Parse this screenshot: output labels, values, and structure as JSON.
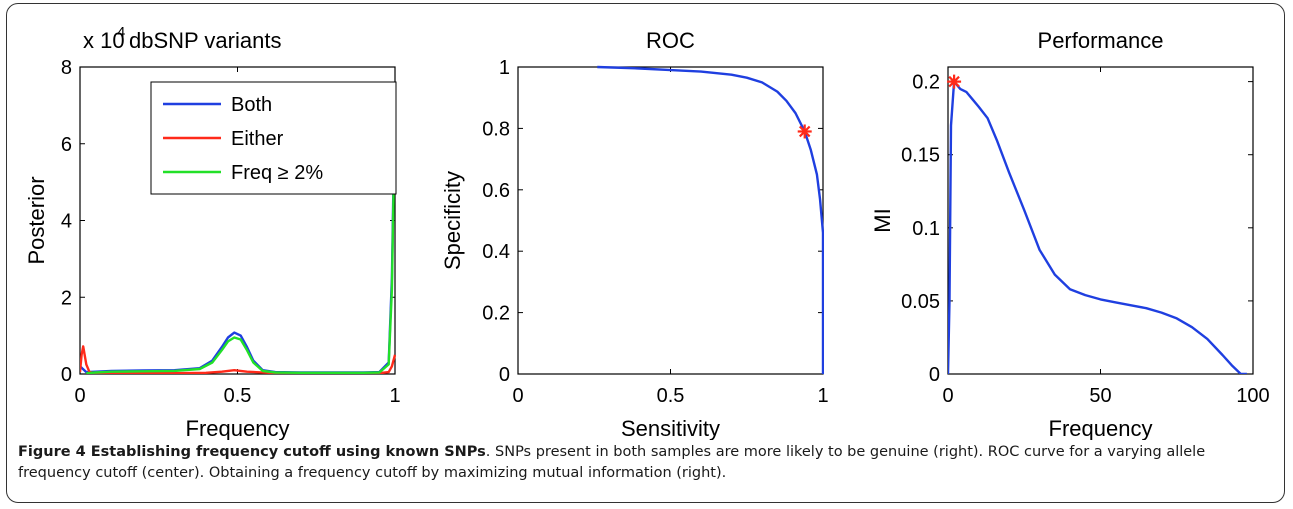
{
  "caption": {
    "bold": "Figure 4 Establishing frequency cutoff using known SNPs",
    "text": ". SNPs present in both samples are more likely to be genuine (right). ROC curve for a varying allele frequency cutoff (center). Obtaining a frequency cutoff by maximizing mutual information (right)."
  },
  "chart_data": [
    {
      "type": "line",
      "title": "dbSNP variants",
      "scale_label": "x 10",
      "scale_exponent": "4",
      "xlabel": "Frequency",
      "ylabel": "Posterior",
      "xlim": [
        0,
        1
      ],
      "ylim": [
        0,
        8
      ],
      "xticks": [
        0,
        0.5,
        1
      ],
      "xtick_labels": [
        "0",
        "0.5",
        "1"
      ],
      "yticks": [
        0,
        2,
        4,
        6,
        8
      ],
      "ytick_labels": [
        "0",
        "2",
        "4",
        "6",
        "8"
      ],
      "grid": false,
      "legend": "top-right",
      "series": [
        {
          "name": "Both",
          "color": "#1f3fe0",
          "x": [
            0,
            0.02,
            0.05,
            0.1,
            0.2,
            0.3,
            0.38,
            0.42,
            0.45,
            0.47,
            0.49,
            0.51,
            0.53,
            0.55,
            0.58,
            0.62,
            0.7,
            0.8,
            0.9,
            0.95,
            0.98,
            0.99,
            1.0
          ],
          "y": [
            0.2,
            0.05,
            0.06,
            0.08,
            0.09,
            0.1,
            0.15,
            0.35,
            0.7,
            0.95,
            1.08,
            1.0,
            0.7,
            0.35,
            0.1,
            0.05,
            0.04,
            0.04,
            0.04,
            0.05,
            0.3,
            2.5,
            7.4
          ]
        },
        {
          "name": "Either",
          "color": "#ff2a1a",
          "x": [
            0,
            0.005,
            0.01,
            0.02,
            0.03,
            0.05,
            0.1,
            0.2,
            0.3,
            0.4,
            0.45,
            0.49,
            0.53,
            0.6,
            0.7,
            0.8,
            0.9,
            0.95,
            0.98,
            0.99,
            1.0
          ],
          "y": [
            0.05,
            0.5,
            0.72,
            0.25,
            0.05,
            0.02,
            0.02,
            0.02,
            0.02,
            0.03,
            0.06,
            0.1,
            0.06,
            0.03,
            0.02,
            0.02,
            0.02,
            0.02,
            0.05,
            0.2,
            0.5
          ]
        },
        {
          "name": "Freq ≥ 2%",
          "color": "#22e028",
          "x": [
            0.02,
            0.05,
            0.1,
            0.2,
            0.3,
            0.38,
            0.42,
            0.45,
            0.47,
            0.49,
            0.51,
            0.53,
            0.55,
            0.58,
            0.62,
            0.7,
            0.8,
            0.9,
            0.95,
            0.98,
            0.99,
            1.0
          ],
          "y": [
            0.02,
            0.04,
            0.06,
            0.07,
            0.08,
            0.13,
            0.3,
            0.62,
            0.85,
            0.95,
            0.9,
            0.62,
            0.3,
            0.08,
            0.04,
            0.03,
            0.03,
            0.03,
            0.04,
            0.25,
            2.2,
            7.0
          ]
        }
      ]
    },
    {
      "type": "line",
      "title": "ROC",
      "xlabel": "Sensitivity",
      "ylabel": "Specificity",
      "xlim": [
        0,
        1
      ],
      "ylim": [
        0,
        1
      ],
      "xticks": [
        0,
        0.5,
        1
      ],
      "xtick_labels": [
        "0",
        "0.5",
        "1"
      ],
      "yticks": [
        0,
        0.2,
        0.4,
        0.6,
        0.8,
        1
      ],
      "ytick_labels": [
        "0",
        "0.2",
        "0.4",
        "0.6",
        "0.8",
        "1"
      ],
      "grid": false,
      "series": [
        {
          "color": "#1f3fe0",
          "x": [
            0.26,
            0.4,
            0.5,
            0.6,
            0.7,
            0.75,
            0.8,
            0.85,
            0.88,
            0.91,
            0.94,
            0.96,
            0.98,
            0.99,
            1.0,
            1.0
          ],
          "y": [
            1.0,
            0.995,
            0.99,
            0.985,
            0.975,
            0.965,
            0.95,
            0.92,
            0.89,
            0.85,
            0.79,
            0.73,
            0.65,
            0.57,
            0.46,
            0.0
          ]
        }
      ],
      "marker": {
        "x": 0.94,
        "y": 0.79,
        "color": "#ff2a1a",
        "symbol": "star"
      }
    },
    {
      "type": "line",
      "title": "Performance",
      "xlabel": "Frequency",
      "ylabel": "MI",
      "xlim": [
        0,
        100
      ],
      "ylim": [
        0,
        0.21
      ],
      "xticks": [
        0,
        50,
        100
      ],
      "xtick_labels": [
        "0",
        "50",
        "100"
      ],
      "yticks": [
        0,
        0.05,
        0.1,
        0.15,
        0.2
      ],
      "ytick_labels": [
        "0",
        "0.05",
        "0.1",
        "0.15",
        "0.2"
      ],
      "grid": false,
      "series": [
        {
          "color": "#1f3fe0",
          "x": [
            0,
            0.5,
            1,
            2,
            4,
            6,
            8,
            10,
            13,
            16,
            20,
            25,
            30,
            35,
            40,
            45,
            50,
            55,
            60,
            65,
            70,
            75,
            80,
            85,
            90,
            93,
            96,
            98
          ],
          "y": [
            0,
            0.05,
            0.17,
            0.2,
            0.195,
            0.193,
            0.188,
            0.183,
            0.175,
            0.16,
            0.138,
            0.112,
            0.085,
            0.068,
            0.058,
            0.054,
            0.051,
            0.049,
            0.047,
            0.045,
            0.042,
            0.038,
            0.032,
            0.024,
            0.013,
            0.006,
            0.0,
            0.0
          ]
        }
      ],
      "marker": {
        "x": 2,
        "y": 0.2,
        "color": "#ff2a1a",
        "symbol": "star"
      }
    }
  ]
}
